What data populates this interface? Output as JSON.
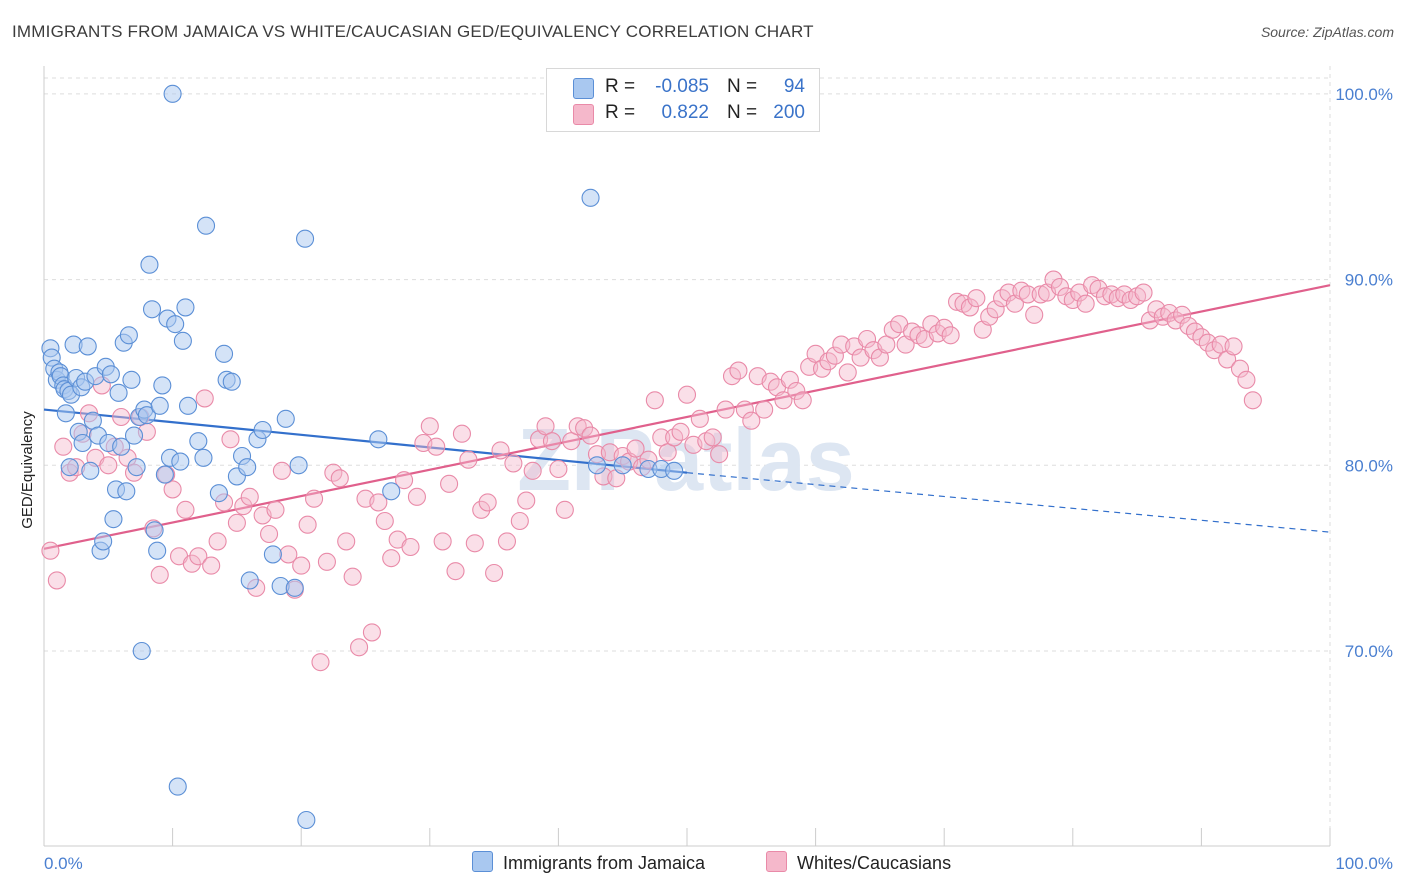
{
  "title": "IMMIGRANTS FROM JAMAICA VS WHITE/CAUCASIAN GED/EQUIVALENCY CORRELATION CHART",
  "source": "Source: ZipAtlas.com",
  "watermark": "ZIPatlas",
  "colors": {
    "blue_fill": "#a9c8f0",
    "blue_stroke": "#5b8fd6",
    "blue_line": "#3370cc",
    "pink_fill": "#f5b8cb",
    "pink_stroke": "#e98aa8",
    "pink_line": "#e0608c",
    "tick_text": "#4a7fd0",
    "grid": "#dddddd"
  },
  "legend": {
    "rows": [
      {
        "r_label": "R =",
        "r_value": "-0.085",
        "n_label": "N =",
        "n_value": "94",
        "color": "#a9c8f0"
      },
      {
        "r_label": "R =",
        "r_value": "0.822",
        "n_label": "N =",
        "n_value": "200",
        "color": "#f5b8cb"
      }
    ]
  },
  "bottom_legend": {
    "jamaica": "Immigrants from Jamaica",
    "white": "Whites/Caucasians"
  },
  "chart_data": {
    "type": "scatter",
    "title": "IMMIGRANTS FROM JAMAICA VS WHITE/CAUCASIAN GED/EQUIVALENCY CORRELATION CHART",
    "xlabel": "",
    "ylabel": "GED/Equivalency",
    "xlim": [
      0,
      100
    ],
    "ylim": [
      59.5,
      101.5
    ],
    "x_tick_labels": [
      "0.0%",
      "100.0%"
    ],
    "y_ticks": [
      {
        "value": 70,
        "label": "70.0%"
      },
      {
        "value": 80,
        "label": "80.0%"
      },
      {
        "value": 90,
        "label": "90.0%"
      },
      {
        "value": 100,
        "label": "100.0%"
      }
    ],
    "grid": true,
    "legend_position": "top-center",
    "series": [
      {
        "name": "Immigrants from Jamaica",
        "color": "#a9c8f0",
        "trend": {
          "x0": 0,
          "y0": 83,
          "x1": 50,
          "y1": 79.6,
          "dashed_to_x": 100,
          "dashed_to_y": 76.4
        },
        "points": [
          [
            0.5,
            86.3
          ],
          [
            0.6,
            85.8
          ],
          [
            0.8,
            85.2
          ],
          [
            1.0,
            84.6
          ],
          [
            1.2,
            85.0
          ],
          [
            1.3,
            84.8
          ],
          [
            1.5,
            84.3
          ],
          [
            1.6,
            84.1
          ],
          [
            1.7,
            82.8
          ],
          [
            1.9,
            84.0
          ],
          [
            2.0,
            79.9
          ],
          [
            2.1,
            83.8
          ],
          [
            2.3,
            86.5
          ],
          [
            2.5,
            84.7
          ],
          [
            2.7,
            81.8
          ],
          [
            2.9,
            84.2
          ],
          [
            3.0,
            81.2
          ],
          [
            3.2,
            84.5
          ],
          [
            3.4,
            86.4
          ],
          [
            3.6,
            79.7
          ],
          [
            3.8,
            82.4
          ],
          [
            4.0,
            84.8
          ],
          [
            4.2,
            81.6
          ],
          [
            4.4,
            75.4
          ],
          [
            4.6,
            75.9
          ],
          [
            4.8,
            85.3
          ],
          [
            5.0,
            81.2
          ],
          [
            5.2,
            84.9
          ],
          [
            5.4,
            77.1
          ],
          [
            5.6,
            78.7
          ],
          [
            5.8,
            83.9
          ],
          [
            6.0,
            81.0
          ],
          [
            6.2,
            86.6
          ],
          [
            6.4,
            78.6
          ],
          [
            6.6,
            87.0
          ],
          [
            6.8,
            84.6
          ],
          [
            7.0,
            81.6
          ],
          [
            7.2,
            79.9
          ],
          [
            7.4,
            82.6
          ],
          [
            7.6,
            70.0
          ],
          [
            7.8,
            83.0
          ],
          [
            8.0,
            82.7
          ],
          [
            8.2,
            90.8
          ],
          [
            8.4,
            88.4
          ],
          [
            8.6,
            76.5
          ],
          [
            8.8,
            75.4
          ],
          [
            9.0,
            83.2
          ],
          [
            9.2,
            84.3
          ],
          [
            9.4,
            79.5
          ],
          [
            9.6,
            87.9
          ],
          [
            9.8,
            80.4
          ],
          [
            10.0,
            100.0
          ],
          [
            10.2,
            87.6
          ],
          [
            10.4,
            62.7
          ],
          [
            10.6,
            80.2
          ],
          [
            10.8,
            86.7
          ],
          [
            11.0,
            88.5
          ],
          [
            11.2,
            83.2
          ],
          [
            12.0,
            81.3
          ],
          [
            12.4,
            80.4
          ],
          [
            12.6,
            92.9
          ],
          [
            13.6,
            78.5
          ],
          [
            14.0,
            86.0
          ],
          [
            14.2,
            84.6
          ],
          [
            14.6,
            84.5
          ],
          [
            15.0,
            79.4
          ],
          [
            15.4,
            80.5
          ],
          [
            15.8,
            79.9
          ],
          [
            16.0,
            73.8
          ],
          [
            16.6,
            81.4
          ],
          [
            17.0,
            81.9
          ],
          [
            17.8,
            75.2
          ],
          [
            18.4,
            73.5
          ],
          [
            18.8,
            82.5
          ],
          [
            19.5,
            73.4
          ],
          [
            19.8,
            80.0
          ],
          [
            20.3,
            92.2
          ],
          [
            20.4,
            60.9
          ],
          [
            26.0,
            81.4
          ],
          [
            27.0,
            78.6
          ],
          [
            42.5,
            94.4
          ],
          [
            43.0,
            80.0
          ],
          [
            45.0,
            80.0
          ],
          [
            47.0,
            79.8
          ],
          [
            48.0,
            79.8
          ],
          [
            49.0,
            79.7
          ]
        ]
      },
      {
        "name": "Whites/Caucasians",
        "color": "#f5b8cb",
        "trend": {
          "x0": 0,
          "y0": 75.5,
          "x1": 100,
          "y1": 89.7
        },
        "points": [
          [
            0.5,
            75.4
          ],
          [
            1.0,
            73.8
          ],
          [
            1.5,
            81.0
          ],
          [
            2.0,
            79.6
          ],
          [
            2.5,
            79.9
          ],
          [
            3.0,
            81.7
          ],
          [
            3.5,
            82.8
          ],
          [
            4.0,
            80.4
          ],
          [
            4.5,
            84.3
          ],
          [
            5.0,
            80.0
          ],
          [
            5.5,
            81.0
          ],
          [
            6.0,
            82.6
          ],
          [
            6.5,
            80.4
          ],
          [
            7.0,
            79.6
          ],
          [
            7.5,
            82.6
          ],
          [
            8.0,
            81.8
          ],
          [
            8.5,
            76.6
          ],
          [
            9.0,
            74.1
          ],
          [
            9.5,
            79.5
          ],
          [
            10.0,
            78.7
          ],
          [
            10.5,
            75.1
          ],
          [
            11.0,
            77.6
          ],
          [
            11.5,
            74.7
          ],
          [
            12.0,
            75.1
          ],
          [
            12.5,
            83.6
          ],
          [
            13.0,
            74.6
          ],
          [
            13.5,
            75.9
          ],
          [
            14.0,
            78.0
          ],
          [
            14.5,
            81.4
          ],
          [
            15.0,
            76.9
          ],
          [
            15.5,
            77.8
          ],
          [
            16.0,
            78.3
          ],
          [
            16.5,
            73.4
          ],
          [
            17.0,
            77.3
          ],
          [
            17.5,
            76.3
          ],
          [
            18.0,
            77.6
          ],
          [
            18.5,
            79.7
          ],
          [
            19.0,
            75.2
          ],
          [
            19.5,
            73.3
          ],
          [
            20.0,
            74.6
          ],
          [
            20.5,
            76.8
          ],
          [
            21.0,
            78.2
          ],
          [
            21.5,
            69.4
          ],
          [
            22.0,
            74.8
          ],
          [
            22.5,
            79.6
          ],
          [
            23.0,
            79.3
          ],
          [
            23.5,
            75.9
          ],
          [
            24.0,
            74.0
          ],
          [
            24.5,
            70.2
          ],
          [
            25.0,
            78.2
          ],
          [
            25.5,
            71.0
          ],
          [
            26.0,
            78.0
          ],
          [
            26.5,
            77.0
          ],
          [
            27.0,
            75.0
          ],
          [
            27.5,
            76.0
          ],
          [
            28.0,
            79.2
          ],
          [
            28.5,
            75.6
          ],
          [
            29.0,
            78.3
          ],
          [
            29.5,
            81.2
          ],
          [
            30.0,
            82.1
          ],
          [
            30.5,
            81.0
          ],
          [
            31.0,
            75.9
          ],
          [
            31.5,
            79.0
          ],
          [
            32.0,
            74.3
          ],
          [
            32.5,
            81.7
          ],
          [
            33.0,
            80.3
          ],
          [
            33.5,
            75.8
          ],
          [
            34.0,
            77.6
          ],
          [
            34.5,
            78.0
          ],
          [
            35.0,
            74.2
          ],
          [
            35.5,
            80.8
          ],
          [
            36.0,
            75.9
          ],
          [
            36.5,
            80.1
          ],
          [
            37.0,
            77.0
          ],
          [
            37.5,
            78.1
          ],
          [
            38.0,
            79.7
          ],
          [
            38.5,
            81.4
          ],
          [
            39.0,
            82.1
          ],
          [
            39.5,
            81.3
          ],
          [
            40.0,
            79.8
          ],
          [
            40.5,
            77.6
          ],
          [
            41.0,
            81.3
          ],
          [
            41.5,
            82.1
          ],
          [
            42.0,
            82.0
          ],
          [
            42.5,
            81.6
          ],
          [
            43.0,
            80.6
          ],
          [
            43.5,
            79.4
          ],
          [
            44.0,
            80.7
          ],
          [
            44.5,
            79.3
          ],
          [
            45.0,
            80.5
          ],
          [
            45.5,
            80.2
          ],
          [
            46.0,
            80.9
          ],
          [
            46.5,
            79.9
          ],
          [
            47.0,
            80.3
          ],
          [
            47.5,
            83.5
          ],
          [
            48.0,
            81.5
          ],
          [
            48.5,
            80.7
          ],
          [
            49.0,
            81.5
          ],
          [
            49.5,
            81.8
          ],
          [
            50.0,
            83.8
          ],
          [
            50.5,
            81.1
          ],
          [
            51.0,
            82.5
          ],
          [
            51.5,
            81.3
          ],
          [
            52.0,
            81.5
          ],
          [
            52.5,
            80.6
          ],
          [
            53.0,
            83.0
          ],
          [
            53.5,
            84.8
          ],
          [
            54.0,
            85.1
          ],
          [
            54.5,
            83.0
          ],
          [
            55.0,
            82.4
          ],
          [
            55.5,
            84.8
          ],
          [
            56.0,
            83.0
          ],
          [
            56.5,
            84.5
          ],
          [
            57.0,
            84.2
          ],
          [
            57.5,
            83.5
          ],
          [
            58.0,
            84.6
          ],
          [
            58.5,
            84.0
          ],
          [
            59.0,
            83.5
          ],
          [
            59.5,
            85.3
          ],
          [
            60.0,
            86.0
          ],
          [
            60.5,
            85.2
          ],
          [
            61.0,
            85.6
          ],
          [
            61.5,
            85.9
          ],
          [
            62.0,
            86.5
          ],
          [
            62.5,
            85.0
          ],
          [
            63.0,
            86.4
          ],
          [
            63.5,
            85.8
          ],
          [
            64.0,
            86.8
          ],
          [
            64.5,
            86.2
          ],
          [
            65.0,
            85.8
          ],
          [
            65.5,
            86.5
          ],
          [
            66.0,
            87.3
          ],
          [
            66.5,
            87.6
          ],
          [
            67.0,
            86.5
          ],
          [
            67.5,
            87.2
          ],
          [
            68.0,
            87.0
          ],
          [
            68.5,
            86.8
          ],
          [
            69.0,
            87.6
          ],
          [
            69.5,
            87.1
          ],
          [
            70.0,
            87.4
          ],
          [
            70.5,
            87.0
          ],
          [
            71.0,
            88.8
          ],
          [
            71.5,
            88.7
          ],
          [
            72.0,
            88.5
          ],
          [
            72.5,
            89.0
          ],
          [
            73.0,
            87.3
          ],
          [
            73.5,
            88.0
          ],
          [
            74.0,
            88.4
          ],
          [
            74.5,
            89.0
          ],
          [
            75.0,
            89.3
          ],
          [
            75.5,
            88.7
          ],
          [
            76.0,
            89.4
          ],
          [
            76.5,
            89.2
          ],
          [
            77.0,
            88.1
          ],
          [
            77.5,
            89.2
          ],
          [
            78.0,
            89.3
          ],
          [
            78.5,
            90.0
          ],
          [
            79.0,
            89.6
          ],
          [
            79.5,
            89.1
          ],
          [
            80.0,
            88.9
          ],
          [
            80.5,
            89.3
          ],
          [
            81.0,
            88.7
          ],
          [
            81.5,
            89.7
          ],
          [
            82.0,
            89.5
          ],
          [
            82.5,
            89.1
          ],
          [
            83.0,
            89.2
          ],
          [
            83.5,
            89.0
          ],
          [
            84.0,
            89.2
          ],
          [
            84.5,
            88.9
          ],
          [
            85.0,
            89.1
          ],
          [
            85.5,
            89.3
          ],
          [
            86.0,
            87.8
          ],
          [
            86.5,
            88.4
          ],
          [
            87.0,
            88.0
          ],
          [
            87.5,
            88.2
          ],
          [
            88.0,
            87.8
          ],
          [
            88.5,
            88.1
          ],
          [
            89.0,
            87.5
          ],
          [
            89.5,
            87.2
          ],
          [
            90.0,
            86.9
          ],
          [
            90.5,
            86.6
          ],
          [
            91.0,
            86.2
          ],
          [
            91.5,
            86.5
          ],
          [
            92.0,
            85.7
          ],
          [
            92.5,
            86.4
          ],
          [
            93.0,
            85.2
          ],
          [
            93.5,
            84.6
          ],
          [
            94.0,
            83.5
          ]
        ]
      }
    ]
  }
}
